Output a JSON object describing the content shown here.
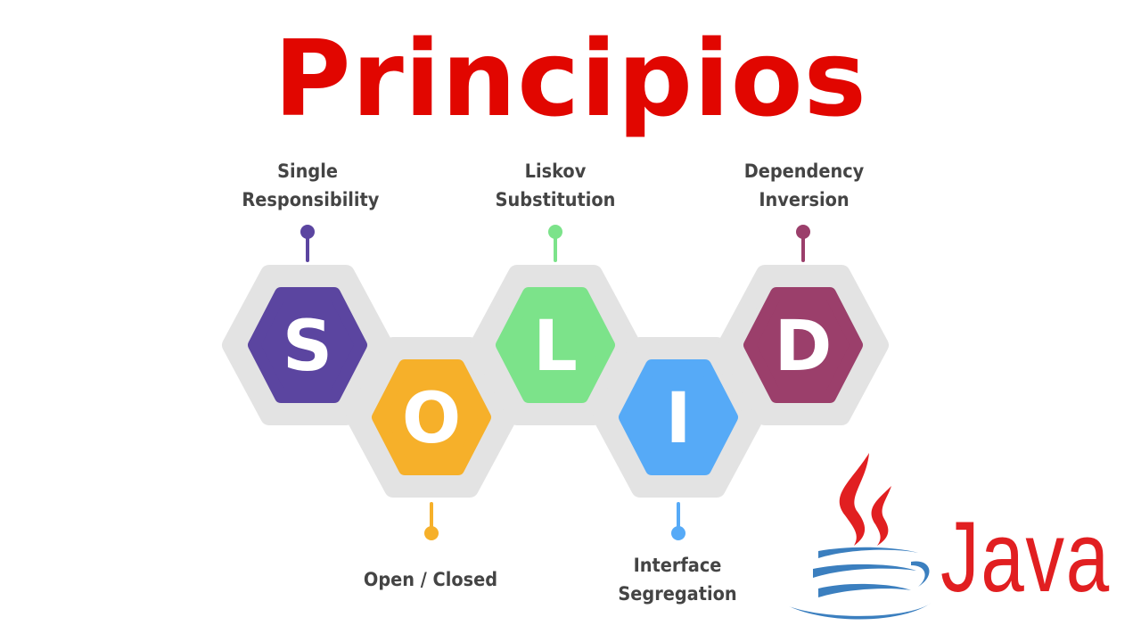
{
  "title": "Principios",
  "colors": {
    "title": "#e10600",
    "track": "#e3e3e3",
    "label_text": "#444444",
    "java_red": "#e11f21",
    "java_blue": "#3b7fbf"
  },
  "principles": [
    {
      "letter": "S",
      "label_lines": [
        "Single",
        "Responsibility"
      ],
      "color": "#5b45a0",
      "position": "top"
    },
    {
      "letter": "O",
      "label_lines": [
        "Open / Closed"
      ],
      "color": "#f6b02a",
      "position": "bottom"
    },
    {
      "letter": "L",
      "label_lines": [
        "Liskov",
        "Substitution"
      ],
      "color": "#7ce38a",
      "position": "top"
    },
    {
      "letter": "I",
      "label_lines": [
        "Interface",
        "Segregation"
      ],
      "color": "#56aaf7",
      "position": "bottom"
    },
    {
      "letter": "D",
      "label_lines": [
        "Dependency",
        "Inversion"
      ],
      "color": "#9b3f6b",
      "position": "top"
    }
  ],
  "java": {
    "wordmark": "Java",
    "logo_icon": "java-coffee-cup-icon"
  }
}
